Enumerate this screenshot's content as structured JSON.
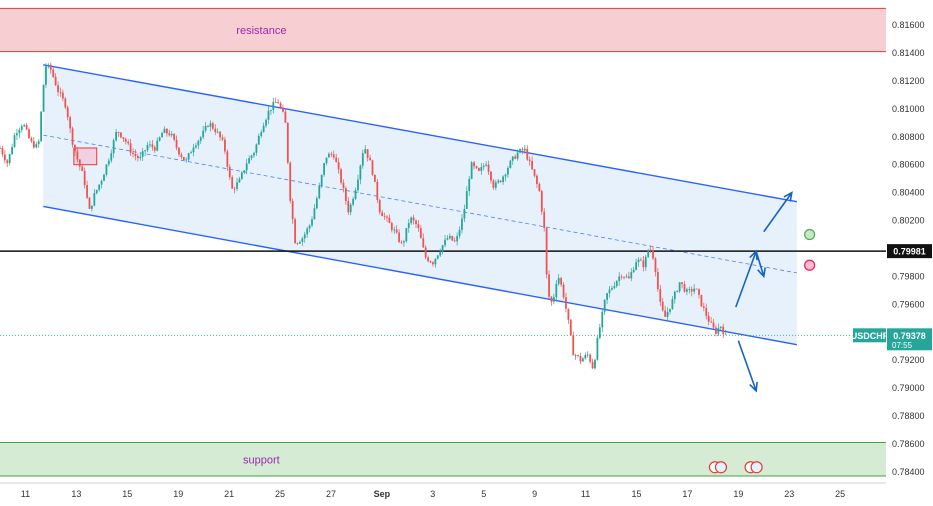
{
  "chart_data": {
    "type": "line",
    "title": "",
    "xlabel": "",
    "ylabel": "",
    "instrument": "USDCHF",
    "last_price": "0.79378",
    "countdown": "07:55",
    "level_price": "0.79981",
    "x_ticks": [
      {
        "label": "11",
        "day": 0
      },
      {
        "label": "13",
        "day": 2
      },
      {
        "label": "15",
        "day": 4
      },
      {
        "label": "19",
        "day": 6
      },
      {
        "label": "21",
        "day": 8
      },
      {
        "label": "25",
        "day": 10
      },
      {
        "label": "27",
        "day": 12
      },
      {
        "label": "Sep",
        "day": 14
      },
      {
        "label": "3",
        "day": 16
      },
      {
        "label": "5",
        "day": 18
      },
      {
        "label": "9",
        "day": 20
      },
      {
        "label": "11",
        "day": 22
      },
      {
        "label": "15",
        "day": 24
      },
      {
        "label": "17",
        "day": 26
      },
      {
        "label": "19",
        "day": 28
      },
      {
        "label": "23",
        "day": 30
      },
      {
        "label": "25",
        "day": 32
      }
    ],
    "y_ticks": [
      "0.81600",
      "0.81400",
      "0.81200",
      "0.81000",
      "0.80800",
      "0.80600",
      "0.80400",
      "0.80200",
      "0.80000",
      "0.79800",
      "0.79600",
      "0.79400",
      "0.79200",
      "0.79000",
      "0.78800",
      "0.78600",
      "0.78400"
    ],
    "ylim": [
      0.7832,
      0.8178
    ],
    "xlim": [
      -1,
      33.8
    ],
    "zones": {
      "resistance": {
        "label": "resistance",
        "from": 0.8141,
        "to": 0.8172,
        "color": "#f7cfd3",
        "edge": "#e53935"
      },
      "support": {
        "label": "support",
        "from": 0.7837,
        "to": 0.7861,
        "color": "#d5ebd3",
        "edge": "#43a047"
      }
    },
    "channel": {
      "upper": [
        [
          0.7,
          0.81316
        ],
        [
          30.3,
          0.80335
        ]
      ],
      "lower": [
        [
          0.7,
          0.80301
        ],
        [
          30.3,
          0.79311
        ]
      ],
      "mid": [
        [
          0.7,
          0.80812
        ],
        [
          30.3,
          0.79825
        ]
      ],
      "fill": "#e3eefc",
      "line_color": "#2962ff"
    },
    "price_points": [
      [
        -1,
        0.8072
      ],
      [
        -0.7,
        0.8061
      ],
      [
        -0.4,
        0.8083
      ],
      [
        -0.1,
        0.809
      ],
      [
        0.2,
        0.8076
      ],
      [
        0.5,
        0.8072
      ],
      [
        0.7,
        0.8116
      ],
      [
        0.8,
        0.8131
      ],
      [
        1.0,
        0.8128
      ],
      [
        1.3,
        0.8112
      ],
      [
        1.6,
        0.8102
      ],
      [
        1.8,
        0.808
      ],
      [
        2.0,
        0.8066
      ],
      [
        2.3,
        0.805
      ],
      [
        2.5,
        0.8026
      ],
      [
        2.7,
        0.8038
      ],
      [
        3.0,
        0.805
      ],
      [
        3.3,
        0.8066
      ],
      [
        3.6,
        0.8085
      ],
      [
        3.9,
        0.8078
      ],
      [
        4.2,
        0.8068
      ],
      [
        4.5,
        0.8064
      ],
      [
        4.8,
        0.8074
      ],
      [
        5.1,
        0.8072
      ],
      [
        5.4,
        0.8084
      ],
      [
        5.7,
        0.8082
      ],
      [
        6.0,
        0.807
      ],
      [
        6.3,
        0.8062
      ],
      [
        6.6,
        0.8074
      ],
      [
        6.9,
        0.808
      ],
      [
        7.2,
        0.809
      ],
      [
        7.5,
        0.8084
      ],
      [
        7.8,
        0.8074
      ],
      [
        8.1,
        0.8042
      ],
      [
        8.4,
        0.8048
      ],
      [
        8.7,
        0.8062
      ],
      [
        9.0,
        0.807
      ],
      [
        9.3,
        0.8088
      ],
      [
        9.6,
        0.81
      ],
      [
        9.9,
        0.8106
      ],
      [
        10.2,
        0.8092
      ],
      [
        10.4,
        0.8036
      ],
      [
        10.6,
        0.8004
      ],
      [
        10.9,
        0.8008
      ],
      [
        11.2,
        0.8018
      ],
      [
        11.5,
        0.804
      ],
      [
        11.8,
        0.8066
      ],
      [
        12.1,
        0.8068
      ],
      [
        12.4,
        0.8048
      ],
      [
        12.7,
        0.8026
      ],
      [
        13.0,
        0.8046
      ],
      [
        13.3,
        0.8074
      ],
      [
        13.6,
        0.8058
      ],
      [
        13.9,
        0.8028
      ],
      [
        14.2,
        0.802
      ],
      [
        14.5,
        0.8012
      ],
      [
        14.8,
        0.8002
      ],
      [
        15.1,
        0.8022
      ],
      [
        15.4,
        0.8016
      ],
      [
        15.7,
        0.7994
      ],
      [
        16.0,
        0.799
      ],
      [
        16.3,
        0.8
      ],
      [
        16.6,
        0.8008
      ],
      [
        16.9,
        0.8004
      ],
      [
        17.2,
        0.8024
      ],
      [
        17.5,
        0.806
      ],
      [
        17.8,
        0.8054
      ],
      [
        18.1,
        0.8062
      ],
      [
        18.4,
        0.8044
      ],
      [
        18.7,
        0.805
      ],
      [
        19.0,
        0.806
      ],
      [
        19.3,
        0.8068
      ],
      [
        19.6,
        0.8071
      ],
      [
        19.9,
        0.8056
      ],
      [
        20.2,
        0.804
      ],
      [
        20.4,
        0.801
      ],
      [
        20.5,
        0.7968
      ],
      [
        20.7,
        0.796
      ],
      [
        20.9,
        0.7982
      ],
      [
        21.1,
        0.797
      ],
      [
        21.3,
        0.795
      ],
      [
        21.5,
        0.7926
      ],
      [
        21.8,
        0.792
      ],
      [
        22.1,
        0.7924
      ],
      [
        22.3,
        0.7914
      ],
      [
        22.5,
        0.7938
      ],
      [
        22.8,
        0.7966
      ],
      [
        23.1,
        0.7974
      ],
      [
        23.4,
        0.7982
      ],
      [
        23.7,
        0.7978
      ],
      [
        24.0,
        0.7992
      ],
      [
        24.3,
        0.7988
      ],
      [
        24.5,
        0.8002
      ],
      [
        24.7,
        0.7992
      ],
      [
        24.9,
        0.7962
      ],
      [
        25.1,
        0.795
      ],
      [
        25.4,
        0.7962
      ],
      [
        25.7,
        0.7976
      ],
      [
        26.0,
        0.7968
      ],
      [
        26.3,
        0.7972
      ],
      [
        26.6,
        0.7958
      ],
      [
        26.9,
        0.7946
      ],
      [
        27.1,
        0.794
      ],
      [
        27.3,
        0.7945
      ],
      [
        27.5,
        0.7937
      ]
    ],
    "annotation_box": {
      "from_day": 1.9,
      "to_day": 2.8,
      "from": 0.806,
      "to": 0.8072
    },
    "scenario_arrows": [
      {
        "points": [
          [
            27.9,
            0.7958
          ],
          [
            28.7,
            0.7998
          ]
        ],
        "color": "#1565c0"
      },
      {
        "points": [
          [
            28.7,
            0.7998
          ],
          [
            29.0,
            0.798
          ]
        ],
        "color": "#1565c0"
      },
      {
        "points": [
          [
            29.0,
            0.8012
          ],
          [
            30.1,
            0.804
          ]
        ],
        "color": "#1565c0"
      },
      {
        "points": [
          [
            28.0,
            0.7934
          ],
          [
            28.7,
            0.7898
          ]
        ],
        "color": "#1565c0"
      }
    ],
    "markers": [
      {
        "day": 30.8,
        "value": 0.801,
        "color": "#4caf50",
        "fill": "#c8e6c9"
      },
      {
        "day": 30.8,
        "value": 0.7988,
        "color": "#e91e63",
        "fill": "#f8bbd0"
      }
    ],
    "events": [
      {
        "day": 27.2,
        "value": 0.7839
      },
      {
        "day": 28.6,
        "value": 0.7839
      }
    ]
  }
}
